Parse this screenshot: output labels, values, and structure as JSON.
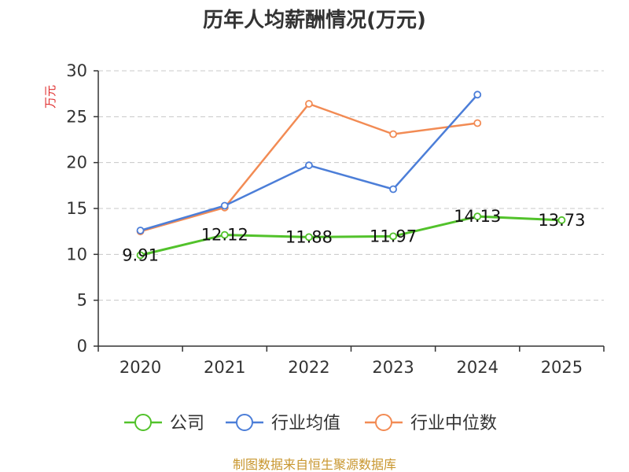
{
  "chart_data": {
    "type": "line",
    "title": "历年人均薪酬情况(万元)",
    "ylabel": "万元",
    "xlabel": "",
    "categories": [
      "2020",
      "2021",
      "2022",
      "2023",
      "2024",
      "2025"
    ],
    "ylim": [
      0,
      30
    ],
    "yticks": [
      0,
      5,
      10,
      15,
      20,
      25,
      30
    ],
    "grid": true,
    "legend_position": "bottom",
    "series": [
      {
        "name": "公司",
        "color": "#52c22b",
        "values": [
          9.91,
          12.12,
          11.88,
          11.97,
          14.13,
          13.73
        ],
        "labels": [
          "9.91",
          "12.12",
          "11.88",
          "11.97",
          "14.13",
          "13.73"
        ]
      },
      {
        "name": "行业均值",
        "color": "#4c7ed8",
        "values": [
          12.6,
          15.3,
          19.7,
          17.1,
          27.4,
          null
        ]
      },
      {
        "name": "行业中位数",
        "color": "#f28b54",
        "values": [
          12.5,
          15.1,
          26.4,
          23.1,
          24.3,
          null
        ]
      }
    ]
  },
  "source": "制图数据来自恒生聚源数据库"
}
